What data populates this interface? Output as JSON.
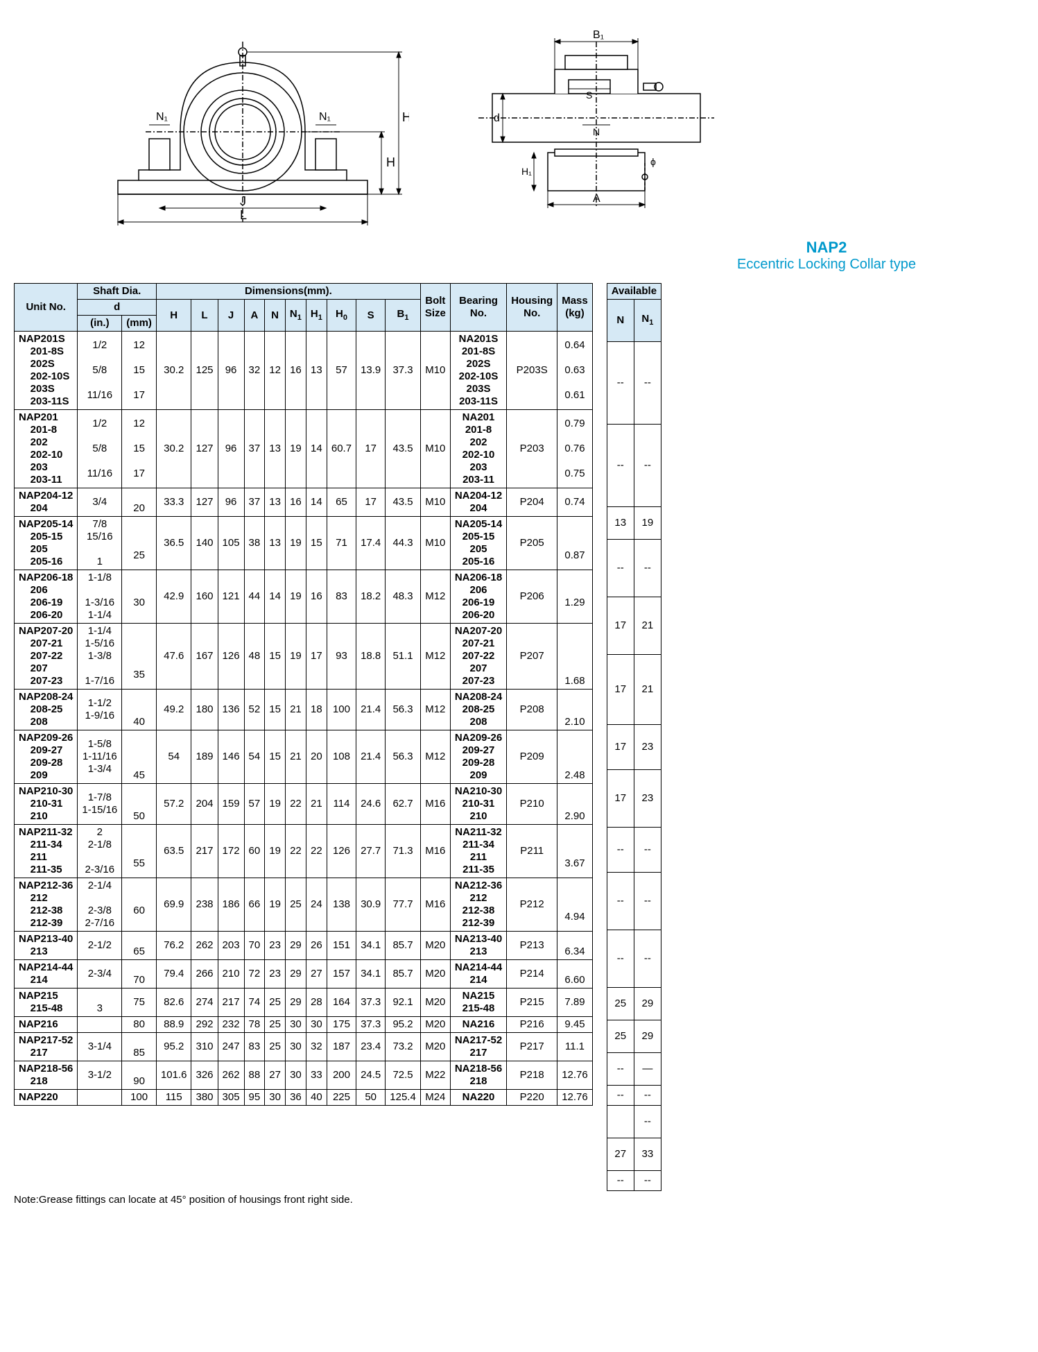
{
  "title": "NAP2",
  "subtitle": "Eccentric Locking Collar type",
  "note": "Note:Grease fittings can locate at 45° position of housings front right side.",
  "diagram1_labels": [
    "N₁",
    "N₁",
    "J",
    "L",
    "H",
    "Hₒ"
  ],
  "diagram2_labels": [
    "B₁",
    "S",
    "N",
    "A",
    "d",
    "H₁",
    "ϕ"
  ],
  "main_headers": {
    "unit": "Unit No.",
    "shaft": "Shaft Dia.",
    "d": "d",
    "in": "(in.)",
    "mm": "(mm)",
    "dims": "Dimensions(mm).",
    "H": "H",
    "L": "L",
    "J": "J",
    "A": "A",
    "N": "N",
    "N1": "N₁",
    "H1": "H₁",
    "H0": "Hₒ",
    "S": "S",
    "B1": "B₁",
    "bolt": "Bolt\nSize",
    "bearing": "Bearing\nNo.",
    "housing": "Housing\nNo.",
    "mass": "Mass\n(kg)"
  },
  "avail_headers": {
    "title": "Available",
    "N": "N",
    "N1": "N₁"
  },
  "rows": [
    {
      "unit": "NAP201S\n    201-8S\n    202S\n    202-10S\n    203S\n    203-11S",
      "in": "1/2\n\n5/8\n\n11/16",
      "mm": "12\n\n15\n\n17",
      "H": "30.2",
      "L": "125",
      "J": "96",
      "A": "32",
      "N": "12",
      "N1": "16",
      "H1": "13",
      "H0": "57",
      "S": "13.9",
      "B1": "37.3",
      "bolt": "M10",
      "bearing": "NA201S\n201-8S\n202S\n202-10S\n203S\n203-11S",
      "housing": "P203S",
      "mass": "0.64\n\n0.63\n\n0.61",
      "aN": "--",
      "aN1": "--"
    },
    {
      "unit": "NAP201\n    201-8\n    202\n    202-10\n    203\n    203-11",
      "in": "1/2\n\n5/8\n\n11/16",
      "mm": "12\n\n15\n\n17",
      "H": "30.2",
      "L": "127",
      "J": "96",
      "A": "37",
      "N": "13",
      "N1": "19",
      "H1": "14",
      "H0": "60.7",
      "S": "17",
      "B1": "43.5",
      "bolt": "M10",
      "bearing": "NA201\n201-8\n202\n202-10\n203\n203-11",
      "housing": "P203",
      "mass": "0.79\n\n0.76\n\n0.75",
      "aN": "--",
      "aN1": "--"
    },
    {
      "unit": "NAP204-12\n    204",
      "in": "3/4",
      "mm": "\n20",
      "H": "33.3",
      "L": "127",
      "J": "96",
      "A": "37",
      "N": "13",
      "N1": "16",
      "H1": "14",
      "H0": "65",
      "S": "17",
      "B1": "43.5",
      "bolt": "M10",
      "bearing": "NA204-12\n204",
      "housing": "P204",
      "mass": "0.74",
      "aN": "13",
      "aN1": "19"
    },
    {
      "unit": "NAP205-14\n    205-15\n    205\n    205-16",
      "in": "7/8\n15/16\n\n1",
      "mm": "\n\n25",
      "H": "36.5",
      "L": "140",
      "J": "105",
      "A": "38",
      "N": "13",
      "N1": "19",
      "H1": "15",
      "H0": "71",
      "S": "17.4",
      "B1": "44.3",
      "bolt": "M10",
      "bearing": "NA205-14\n205-15\n205\n205-16",
      "housing": "P205",
      "mass": "\n\n0.87",
      "aN": "--",
      "aN1": "--"
    },
    {
      "unit": "NAP206-18\n    206\n    206-19\n    206-20",
      "in": "1-1/8\n\n1-3/16\n1-1/4",
      "mm": "\n30",
      "H": "42.9",
      "L": "160",
      "J": "121",
      "A": "44",
      "N": "14",
      "N1": "19",
      "H1": "16",
      "H0": "83",
      "S": "18.2",
      "B1": "48.3",
      "bolt": "M12",
      "bearing": "NA206-18\n206\n206-19\n206-20",
      "housing": "P206",
      "mass": "\n1.29",
      "aN": "17",
      "aN1": "21"
    },
    {
      "unit": "NAP207-20\n    207-21\n    207-22\n    207\n    207-23",
      "in": "1-1/4\n1-5/16\n1-3/8\n\n1-7/16",
      "mm": "\n\n\n35",
      "H": "47.6",
      "L": "167",
      "J": "126",
      "A": "48",
      "N": "15",
      "N1": "19",
      "H1": "17",
      "H0": "93",
      "S": "18.8",
      "B1": "51.1",
      "bolt": "M12",
      "bearing": "NA207-20\n207-21\n207-22\n207\n207-23",
      "housing": "P207",
      "mass": "\n\n\n\n1.68",
      "aN": "17",
      "aN1": "21"
    },
    {
      "unit": "NAP208-24\n    208-25\n    208",
      "in": "1-1/2\n1-9/16",
      "mm": "\n\n40",
      "H": "49.2",
      "L": "180",
      "J": "136",
      "A": "52",
      "N": "15",
      "N1": "21",
      "H1": "18",
      "H0": "100",
      "S": "21.4",
      "B1": "56.3",
      "bolt": "M12",
      "bearing": "NA208-24\n208-25\n208",
      "housing": "P208",
      "mass": "\n\n2.10",
      "aN": "17",
      "aN1": "23"
    },
    {
      "unit": "NAP209-26\n    209-27\n    209-28\n    209",
      "in": "1-5/8\n1-11/16\n1-3/4",
      "mm": "\n\n\n45",
      "H": "54",
      "L": "189",
      "J": "146",
      "A": "54",
      "N": "15",
      "N1": "21",
      "H1": "20",
      "H0": "108",
      "S": "21.4",
      "B1": "56.3",
      "bolt": "M12",
      "bearing": "NA209-26\n209-27\n209-28\n209",
      "housing": "P209",
      "mass": "\n\n\n2.48",
      "aN": "17",
      "aN1": "23"
    },
    {
      "unit": "NAP210-30\n    210-31\n    210",
      "in": "1-7/8\n1-15/16",
      "mm": "\n\n50",
      "H": "57.2",
      "L": "204",
      "J": "159",
      "A": "57",
      "N": "19",
      "N1": "22",
      "H1": "21",
      "H0": "114",
      "S": "24.6",
      "B1": "62.7",
      "bolt": "M16",
      "bearing": "NA210-30\n210-31\n210",
      "housing": "P210",
      "mass": "\n\n2.90",
      "aN": "--",
      "aN1": "--"
    },
    {
      "unit": "NAP211-32\n    211-34\n    211\n    211-35",
      "in": "2\n2-1/8\n\n2-3/16",
      "mm": "\n\n55",
      "H": "63.5",
      "L": "217",
      "J": "172",
      "A": "60",
      "N": "19",
      "N1": "22",
      "H1": "22",
      "H0": "126",
      "S": "27.7",
      "B1": "71.3",
      "bolt": "M16",
      "bearing": "NA211-32\n211-34\n211\n211-35",
      "housing": "P211",
      "mass": "\n\n3.67",
      "aN": "--",
      "aN1": "--"
    },
    {
      "unit": "NAP212-36\n    212\n    212-38\n    212-39",
      "in": "2-1/4\n\n2-3/8\n2-7/16",
      "mm": "\n60",
      "H": "69.9",
      "L": "238",
      "J": "186",
      "A": "66",
      "N": "19",
      "N1": "25",
      "H1": "24",
      "H0": "138",
      "S": "30.9",
      "B1": "77.7",
      "bolt": "M16",
      "bearing": "NA212-36\n212\n212-38\n212-39",
      "housing": "P212",
      "mass": "\n\n4.94",
      "aN": "--",
      "aN1": "--"
    },
    {
      "unit": "NAP213-40\n    213",
      "in": "2-1/2",
      "mm": "\n65",
      "H": "76.2",
      "L": "262",
      "J": "203",
      "A": "70",
      "N": "23",
      "N1": "29",
      "H1": "26",
      "H0": "151",
      "S": "34.1",
      "B1": "85.7",
      "bolt": "M20",
      "bearing": "NA213-40\n213",
      "housing": "P213",
      "mass": "\n6.34",
      "aN": "25",
      "aN1": "29"
    },
    {
      "unit": "NAP214-44\n    214",
      "in": "2-3/4",
      "mm": "\n70",
      "H": "79.4",
      "L": "266",
      "J": "210",
      "A": "72",
      "N": "23",
      "N1": "29",
      "H1": "27",
      "H0": "157",
      "S": "34.1",
      "B1": "85.7",
      "bolt": "M20",
      "bearing": "NA214-44\n214",
      "housing": "P214",
      "mass": "\n6.60",
      "aN": "25",
      "aN1": "29"
    },
    {
      "unit": "NAP215\n    215-48",
      "in": "\n3",
      "mm": "75",
      "H": "82.6",
      "L": "274",
      "J": "217",
      "A": "74",
      "N": "25",
      "N1": "29",
      "H1": "28",
      "H0": "164",
      "S": "37.3",
      "B1": "92.1",
      "bolt": "M20",
      "bearing": "NA215\n215-48",
      "housing": "P215",
      "mass": "7.89",
      "aN": "--",
      "aN1": "—"
    },
    {
      "unit": "NAP216",
      "in": "",
      "mm": "80",
      "H": "88.9",
      "L": "292",
      "J": "232",
      "A": "78",
      "N": "25",
      "N1": "30",
      "H1": "30",
      "H0": "175",
      "S": "37.3",
      "B1": "95.2",
      "bolt": "M20",
      "bearing": "NA216",
      "housing": "P216",
      "mass": "9.45",
      "aN": "--",
      "aN1": "--"
    },
    {
      "unit": "NAP217-52\n    217",
      "in": "3-1/4",
      "mm": "\n85",
      "H": "95.2",
      "L": "310",
      "J": "247",
      "A": "83",
      "N": "25",
      "N1": "30",
      "H1": "32",
      "H0": "187",
      "S": "23.4",
      "B1": "73.2",
      "bolt": "M20",
      "bearing": "NA217-52\n217",
      "housing": "P217",
      "mass": "11.1",
      "aN": "",
      "aN1": "--"
    },
    {
      "unit": "NAP218-56\n    218",
      "in": "3-1/2",
      "mm": "\n90",
      "H": "101.6",
      "L": "326",
      "J": "262",
      "A": "88",
      "N": "27",
      "N1": "30",
      "H1": "33",
      "H0": "200",
      "S": "24.5",
      "B1": "72.5",
      "bolt": "M22",
      "bearing": "NA218-56\n218",
      "housing": "P218",
      "mass": "12.76",
      "aN": "27",
      "aN1": "33"
    },
    {
      "unit": "NAP220",
      "in": "",
      "mm": "100",
      "H": "115",
      "L": "380",
      "J": "305",
      "A": "95",
      "N": "30",
      "N1": "36",
      "H1": "40",
      "H0": "225",
      "S": "50",
      "B1": "125.4",
      "bolt": "M24",
      "bearing": "NA220",
      "housing": "P220",
      "mass": "12.76",
      "aN": "--",
      "aN1": "--"
    }
  ]
}
